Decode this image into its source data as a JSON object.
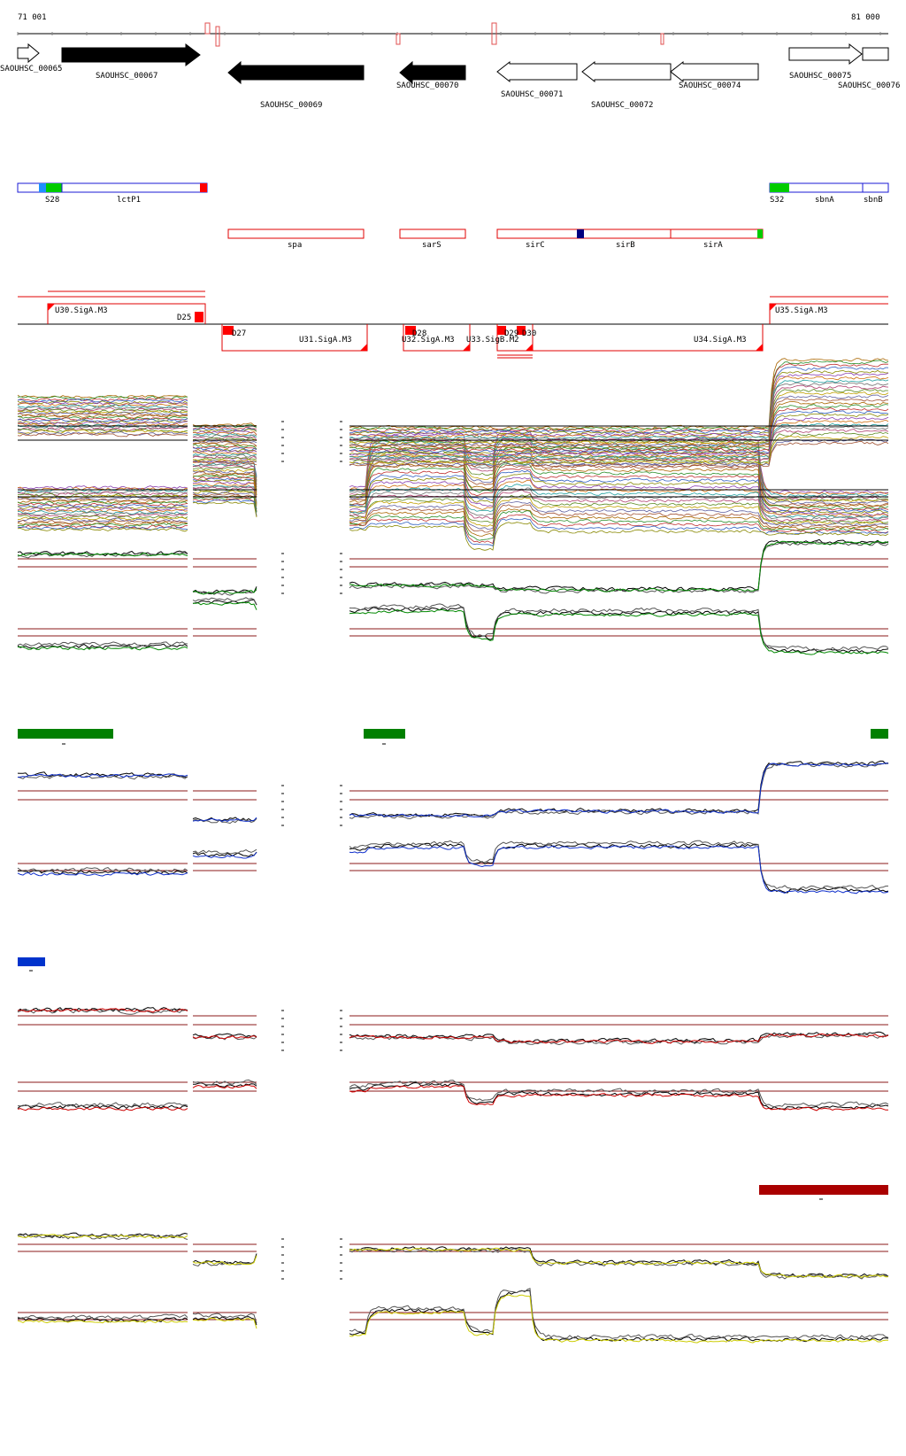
{
  "scale": {
    "start_label": "71 001",
    "end_label": "81 000"
  },
  "genes": [
    {
      "id": "SAOUHSC_00065",
      "strand": "+",
      "filled": false
    },
    {
      "id": "SAOUHSC_00067",
      "strand": "+",
      "filled": true
    },
    {
      "id": "SAOUHSC_00069",
      "strand": "-",
      "filled": true
    },
    {
      "id": "SAOUHSC_00070",
      "strand": "-",
      "filled": true
    },
    {
      "id": "SAOUHSC_00071",
      "strand": "-",
      "filled": false
    },
    {
      "id": "SAOUHSC_00072",
      "strand": "-",
      "filled": false
    },
    {
      "id": "SAOUHSC_00074",
      "strand": "-",
      "filled": false
    },
    {
      "id": "SAOUHSC_00075",
      "strand": "+",
      "filled": false
    },
    {
      "id": "SAOUHSC_00076",
      "strand": "+",
      "filled": false
    }
  ],
  "top_features": [
    {
      "label": "S28"
    },
    {
      "label": "lctP1"
    },
    {
      "label": "S32"
    },
    {
      "label": "sbnA"
    },
    {
      "label": "sbnB"
    }
  ],
  "minus_features": [
    {
      "label": "spa"
    },
    {
      "label": "sarS"
    },
    {
      "label": "sirC"
    },
    {
      "label": "sirB"
    },
    {
      "label": "sirA"
    }
  ],
  "segments": [
    {
      "label": "U30.SigA.M3"
    },
    {
      "label": "D25"
    },
    {
      "label": "D27"
    },
    {
      "label": "U31.SigA.M3"
    },
    {
      "label": "D28"
    },
    {
      "label": "U32.SigA.M3"
    },
    {
      "label": "U33.SigB.M2"
    },
    {
      "label": "D29"
    },
    {
      "label": "D30"
    },
    {
      "label": "U34.SigA.M3"
    },
    {
      "label": "U35.SigA.M3"
    }
  ],
  "colors": {
    "filled_gene": "#000000",
    "feature_outline_top": "#1a1ad6",
    "feature_outline_bottom": "#e00000",
    "green_box": "#00cc00",
    "red_box": "#ff0000",
    "dark_blue": "#000080",
    "cond_green": "#008800",
    "cond_blue": "#1030cc",
    "cond_red": "#cc0000",
    "cond_yellow": "#cccc00",
    "bar_green": "#008000",
    "bar_blue": "#0033cc",
    "bar_darkred": "#aa0000",
    "threshold": "#8b1a1a"
  }
}
